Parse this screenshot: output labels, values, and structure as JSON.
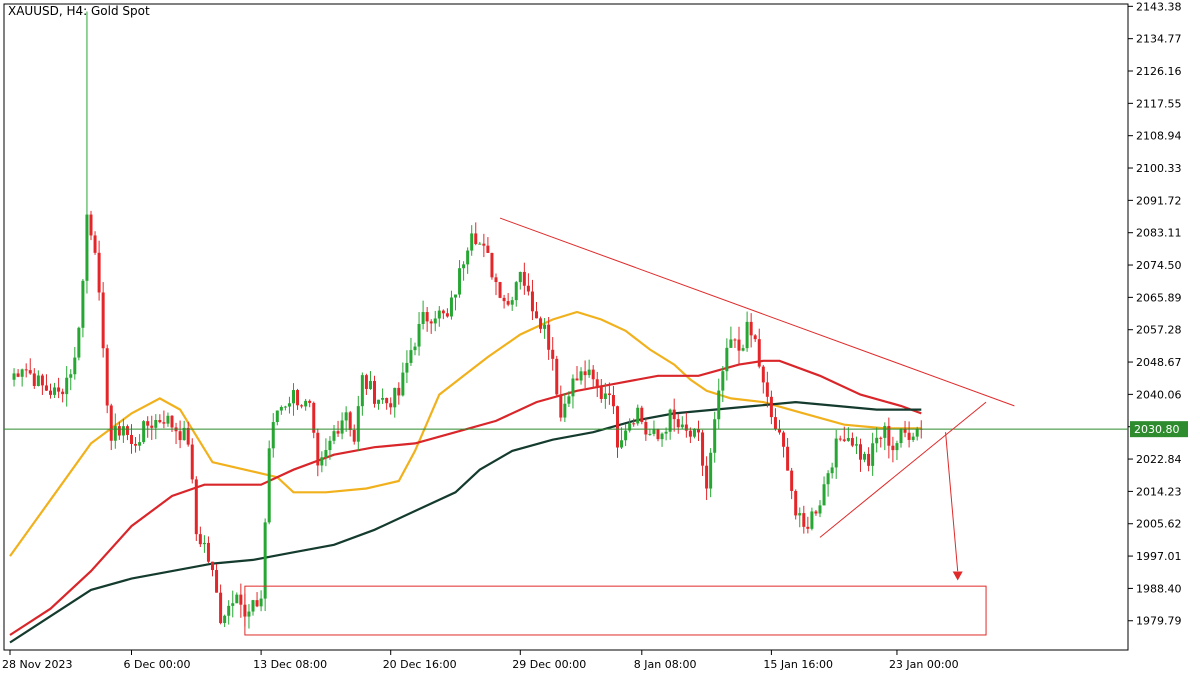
{
  "title": "XAUUSD, H4:  Gold Spot",
  "price_tag": "2030.80",
  "colors": {
    "bull": "#26a632",
    "bear": "#e3262a",
    "ma_fast": "#f1b11c",
    "ma_mid": "#d9262a",
    "ma_slow": "#143b2e",
    "current_line": "#2e8b2e",
    "pattern": "#e02a2a"
  },
  "chart_data": {
    "type": "candlestick",
    "ylim": [
      1972,
      2144
    ],
    "y_ticks": [
      "2143.38",
      "2134.77",
      "2126.16",
      "2117.55",
      "2108.94",
      "2100.33",
      "2091.72",
      "2083.11",
      "2074.50",
      "2065.89",
      "2057.28",
      "2048.67",
      "2040.06",
      "2031.45",
      "2022.84",
      "2014.23",
      "2005.62",
      "1997.01",
      "1988.40",
      "1979.79"
    ],
    "x_ticks": [
      {
        "label": "28 Nov 2023",
        "index": 0
      },
      {
        "label": "6 Dec 00:00",
        "index": 30
      },
      {
        "label": "13 Dec 08:00",
        "index": 62
      },
      {
        "label": "20 Dec 16:00",
        "index": 94
      },
      {
        "label": "29 Dec 00:00",
        "index": 126
      },
      {
        "label": "8 Jan 08:00",
        "index": 156
      },
      {
        "label": "15 Jan 16:00",
        "index": 188
      },
      {
        "label": "23 Jan 00:00",
        "index": 219
      }
    ],
    "current_price": 2030.8,
    "candle_waypoints": [
      [
        0,
        2044
      ],
      [
        3,
        2048
      ],
      [
        8,
        2042
      ],
      [
        12,
        2040
      ],
      [
        16,
        2049
      ],
      [
        18,
        2070
      ],
      [
        19,
        2088
      ],
      [
        21,
        2080
      ],
      [
        23,
        2050
      ],
      [
        25,
        2028
      ],
      [
        28,
        2032
      ],
      [
        30,
        2026
      ],
      [
        34,
        2032
      ],
      [
        38,
        2034
      ],
      [
        42,
        2030
      ],
      [
        44,
        2028
      ],
      [
        46,
        2003
      ],
      [
        48,
        2000
      ],
      [
        50,
        1992
      ],
      [
        52,
        1981
      ],
      [
        54,
        1984
      ],
      [
        56,
        1989
      ],
      [
        58,
        1980
      ],
      [
        60,
        1983
      ],
      [
        62,
        1986
      ],
      [
        64,
        2026
      ],
      [
        66,
        2036
      ],
      [
        70,
        2040
      ],
      [
        74,
        2036
      ],
      [
        76,
        2019
      ],
      [
        78,
        2024
      ],
      [
        80,
        2030
      ],
      [
        83,
        2036
      ],
      [
        85,
        2028
      ],
      [
        87,
        2044
      ],
      [
        90,
        2040
      ],
      [
        93,
        2038
      ],
      [
        96,
        2040
      ],
      [
        99,
        2052
      ],
      [
        102,
        2060
      ],
      [
        105,
        2062
      ],
      [
        108,
        2060
      ],
      [
        111,
        2072
      ],
      [
        114,
        2085
      ],
      [
        116,
        2080
      ],
      [
        118,
        2076
      ],
      [
        120,
        2070
      ],
      [
        123,
        2064
      ],
      [
        126,
        2074
      ],
      [
        128,
        2066
      ],
      [
        130,
        2062
      ],
      [
        132,
        2058
      ],
      [
        134,
        2050
      ],
      [
        136,
        2034
      ],
      [
        138,
        2042
      ],
      [
        142,
        2046
      ],
      [
        146,
        2040
      ],
      [
        148,
        2042
      ],
      [
        150,
        2028
      ],
      [
        152,
        2032
      ],
      [
        155,
        2036
      ],
      [
        157,
        2030
      ],
      [
        160,
        2028
      ],
      [
        163,
        2034
      ],
      [
        166,
        2030
      ],
      [
        170,
        2028
      ],
      [
        172,
        2015
      ],
      [
        174,
        2032
      ],
      [
        176,
        2046
      ],
      [
        178,
        2054
      ],
      [
        180,
        2052
      ],
      [
        182,
        2057
      ],
      [
        184,
        2054
      ],
      [
        186,
        2042
      ],
      [
        188,
        2034
      ],
      [
        190,
        2028
      ],
      [
        192,
        2022
      ],
      [
        194,
        2008
      ],
      [
        196,
        2004
      ],
      [
        198,
        2008
      ],
      [
        200,
        2012
      ],
      [
        202,
        2020
      ],
      [
        204,
        2026
      ],
      [
        206,
        2030
      ],
      [
        208,
        2028
      ],
      [
        210,
        2024
      ],
      [
        212,
        2022
      ],
      [
        214,
        2028
      ],
      [
        216,
        2030
      ],
      [
        218,
        2026
      ],
      [
        220,
        2029
      ],
      [
        222,
        2030
      ],
      [
        224,
        2031
      ],
      [
        225,
        2030.8
      ]
    ],
    "spike": {
      "index": 19,
      "high": 2142
    },
    "series": [
      {
        "key": "ma_fast",
        "points": [
          [
            0,
            1997
          ],
          [
            10,
            2012
          ],
          [
            20,
            2027
          ],
          [
            30,
            2035
          ],
          [
            37,
            2039
          ],
          [
            42,
            2036
          ],
          [
            50,
            2022
          ],
          [
            58,
            2020
          ],
          [
            66,
            2018
          ],
          [
            70,
            2014
          ],
          [
            78,
            2014
          ],
          [
            88,
            2015
          ],
          [
            96,
            2017
          ],
          [
            100,
            2025
          ],
          [
            106,
            2040
          ],
          [
            112,
            2045
          ],
          [
            118,
            2050
          ],
          [
            126,
            2056
          ],
          [
            134,
            2060
          ],
          [
            140,
            2062
          ],
          [
            146,
            2060
          ],
          [
            152,
            2057
          ],
          [
            158,
            2052
          ],
          [
            164,
            2048
          ],
          [
            168,
            2044
          ],
          [
            172,
            2041
          ],
          [
            178,
            2039
          ],
          [
            186,
            2038
          ],
          [
            196,
            2035
          ],
          [
            206,
            2032
          ],
          [
            216,
            2031
          ],
          [
            225,
            2031
          ]
        ]
      },
      {
        "key": "ma_mid",
        "points": [
          [
            0,
            1976
          ],
          [
            10,
            1983
          ],
          [
            20,
            1993
          ],
          [
            30,
            2005
          ],
          [
            40,
            2013
          ],
          [
            48,
            2016
          ],
          [
            56,
            2016
          ],
          [
            62,
            2016
          ],
          [
            70,
            2020
          ],
          [
            80,
            2024
          ],
          [
            90,
            2026
          ],
          [
            100,
            2027
          ],
          [
            110,
            2030
          ],
          [
            120,
            2033
          ],
          [
            130,
            2038
          ],
          [
            140,
            2041
          ],
          [
            150,
            2043
          ],
          [
            160,
            2045
          ],
          [
            170,
            2045
          ],
          [
            180,
            2048
          ],
          [
            186,
            2049
          ],
          [
            190,
            2049
          ],
          [
            200,
            2045
          ],
          [
            210,
            2040
          ],
          [
            220,
            2037
          ],
          [
            225,
            2035
          ]
        ]
      },
      {
        "key": "ma_slow",
        "points": [
          [
            0,
            1974
          ],
          [
            10,
            1981
          ],
          [
            20,
            1988
          ],
          [
            30,
            1991
          ],
          [
            40,
            1993
          ],
          [
            50,
            1995
          ],
          [
            60,
            1996
          ],
          [
            70,
            1998
          ],
          [
            80,
            2000
          ],
          [
            90,
            2004
          ],
          [
            100,
            2009
          ],
          [
            110,
            2014
          ],
          [
            116,
            2020
          ],
          [
            124,
            2025
          ],
          [
            134,
            2028
          ],
          [
            144,
            2030
          ],
          [
            154,
            2033
          ],
          [
            164,
            2035
          ],
          [
            174,
            2036
          ],
          [
            184,
            2037
          ],
          [
            194,
            2038
          ],
          [
            204,
            2037
          ],
          [
            214,
            2036
          ],
          [
            225,
            2036
          ]
        ]
      }
    ]
  }
}
